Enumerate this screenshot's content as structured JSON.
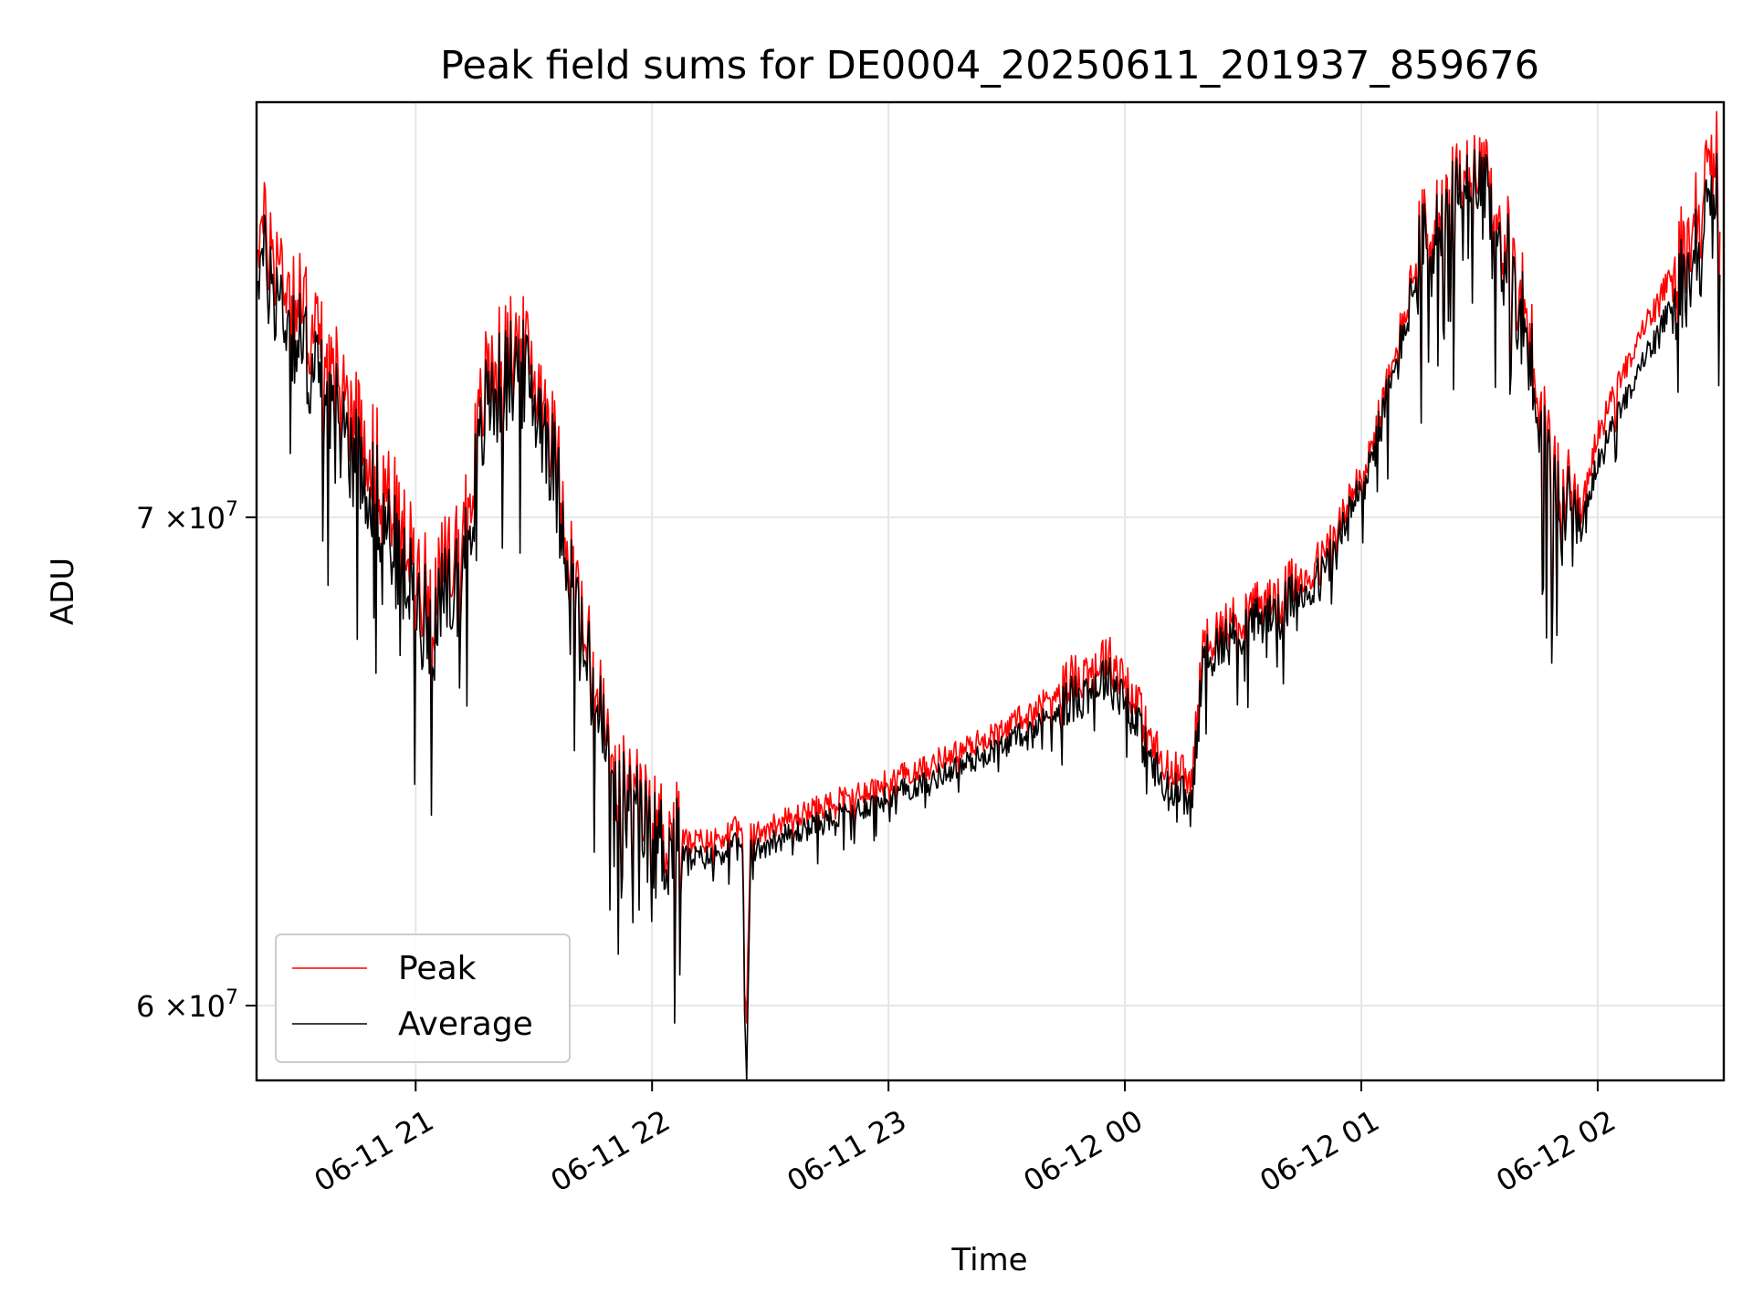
{
  "chart_data": {
    "type": "line",
    "title": "Peak field sums for DE0004_20250611_201937_859676",
    "xlabel": "Time",
    "ylabel": "ADU",
    "yscale": "log",
    "xlim": [
      "2025-06-11 20:19:37",
      "2025-06-12 02:32:00"
    ],
    "ylim": [
      58600000,
      79800000
    ],
    "x_ticks": [
      "2025-06-11 21:00",
      "2025-06-11 22:00",
      "2025-06-11 23:00",
      "2025-06-12 00:00",
      "2025-06-12 01:00",
      "2025-06-12 02:00"
    ],
    "x_tick_labels": [
      "06-11 21",
      "06-11 22",
      "06-11 23",
      "06-12 00",
      "06-12 01",
      "06-12 02"
    ],
    "y_ticks": [
      60000000,
      70000000
    ],
    "y_tick_labels": [
      {
        "mantissa": "6",
        "exponent": "7"
      },
      {
        "mantissa": "7",
        "exponent": "7"
      }
    ],
    "y_tick_times": "×10",
    "grid": true,
    "legend_position": "lower-left",
    "series": [
      {
        "name": "Peak",
        "color": "#ff0000",
        "x": [
          "2025-06-11 20:20",
          "2025-06-11 20:30",
          "2025-06-11 20:40",
          "2025-06-11 20:50",
          "2025-06-11 20:57",
          "2025-06-11 21:04",
          "2025-06-11 21:12",
          "2025-06-11 21:18",
          "2025-06-11 21:26",
          "2025-06-11 21:33",
          "2025-06-11 21:38",
          "2025-06-11 21:42",
          "2025-06-11 21:47",
          "2025-06-11 21:50",
          "2025-06-11 21:55",
          "2025-06-11 22:00",
          "2025-06-11 22:10",
          "2025-06-11 22:15",
          "2025-06-11 22:20",
          "2025-06-11 22:23",
          "2025-06-11 22:23:30",
          "2025-06-11 22:24",
          "2025-06-11 22:25",
          "2025-06-11 22:30",
          "2025-06-11 22:40",
          "2025-06-11 22:50",
          "2025-06-11 23:00",
          "2025-06-11 23:20",
          "2025-06-11 23:30",
          "2025-06-11 23:45",
          "2025-06-11 23:55",
          "2025-06-12 00:00",
          "2025-06-12 00:10",
          "2025-06-12 00:17",
          "2025-06-12 00:20",
          "2025-06-12 00:30",
          "2025-06-12 00:40",
          "2025-06-12 00:50",
          "2025-06-12 01:00",
          "2025-06-12 01:08",
          "2025-06-12 01:15",
          "2025-06-12 01:22",
          "2025-06-12 01:30",
          "2025-06-12 01:40",
          "2025-06-12 01:48",
          "2025-06-12 01:55",
          "2025-06-12 02:00",
          "2025-06-12 02:10",
          "2025-06-12 02:20",
          "2025-06-12 02:31"
        ],
        "values": [
          76800000,
          75000000,
          73100000,
          71300000,
          69500000,
          68200000,
          69600000,
          73200000,
          74000000,
          72600000,
          70100000,
          67600000,
          65900000,
          64700000,
          64100000,
          63500000,
          63200000,
          63200000,
          63400000,
          63500000,
          60000000,
          59800000,
          63300000,
          63500000,
          63800000,
          64100000,
          64400000,
          65100000,
          65500000,
          66400000,
          67000000,
          66600000,
          64600000,
          64400000,
          67300000,
          67900000,
          68400000,
          69000000,
          70800000,
          73300000,
          76300000,
          77200000,
          77900000,
          75500000,
          71200000,
          69800000,
          71900000,
          74000000,
          75800000,
          78500000
        ]
      },
      {
        "name": "Average",
        "color": "#000000",
        "x": [
          "2025-06-11 20:20",
          "2025-06-11 20:30",
          "2025-06-11 20:40",
          "2025-06-11 20:50",
          "2025-06-11 20:57",
          "2025-06-11 21:04",
          "2025-06-11 21:12",
          "2025-06-11 21:18",
          "2025-06-11 21:26",
          "2025-06-11 21:33",
          "2025-06-11 21:38",
          "2025-06-11 21:42",
          "2025-06-11 21:47",
          "2025-06-11 21:50",
          "2025-06-11 21:55",
          "2025-06-11 22:00",
          "2025-06-11 22:10",
          "2025-06-11 22:15",
          "2025-06-11 22:20",
          "2025-06-11 22:23",
          "2025-06-11 22:23:30",
          "2025-06-11 22:24",
          "2025-06-11 22:25",
          "2025-06-11 22:30",
          "2025-06-11 22:40",
          "2025-06-11 22:50",
          "2025-06-11 23:00",
          "2025-06-11 23:20",
          "2025-06-11 23:30",
          "2025-06-11 23:45",
          "2025-06-11 23:55",
          "2025-06-12 00:00",
          "2025-06-12 00:10",
          "2025-06-12 00:17",
          "2025-06-12 00:20",
          "2025-06-12 00:30",
          "2025-06-12 00:40",
          "2025-06-12 00:50",
          "2025-06-12 01:00",
          "2025-06-12 01:08",
          "2025-06-12 01:15",
          "2025-06-12 01:22",
          "2025-06-12 01:30",
          "2025-06-12 01:40",
          "2025-06-12 01:48",
          "2025-06-12 01:55",
          "2025-06-12 02:00",
          "2025-06-12 02:10",
          "2025-06-12 02:20",
          "2025-06-12 02:31"
        ],
        "values": [
          76200000,
          74200000,
          72400000,
          70600000,
          68800000,
          67700000,
          69000000,
          72700000,
          73600000,
          72200000,
          69800000,
          67400000,
          65700000,
          64500000,
          63900000,
          63300000,
          63000000,
          63000000,
          63200000,
          63300000,
          59800000,
          58600000,
          63100000,
          63300000,
          63600000,
          63900000,
          64200000,
          64900000,
          65300000,
          66100000,
          66700000,
          66300000,
          64300000,
          64100000,
          67100000,
          67700000,
          68200000,
          68800000,
          70700000,
          73200000,
          76100000,
          77000000,
          77700000,
          75200000,
          70900000,
          69600000,
          71400000,
          73400000,
          75200000,
          77600000
        ]
      }
    ]
  }
}
